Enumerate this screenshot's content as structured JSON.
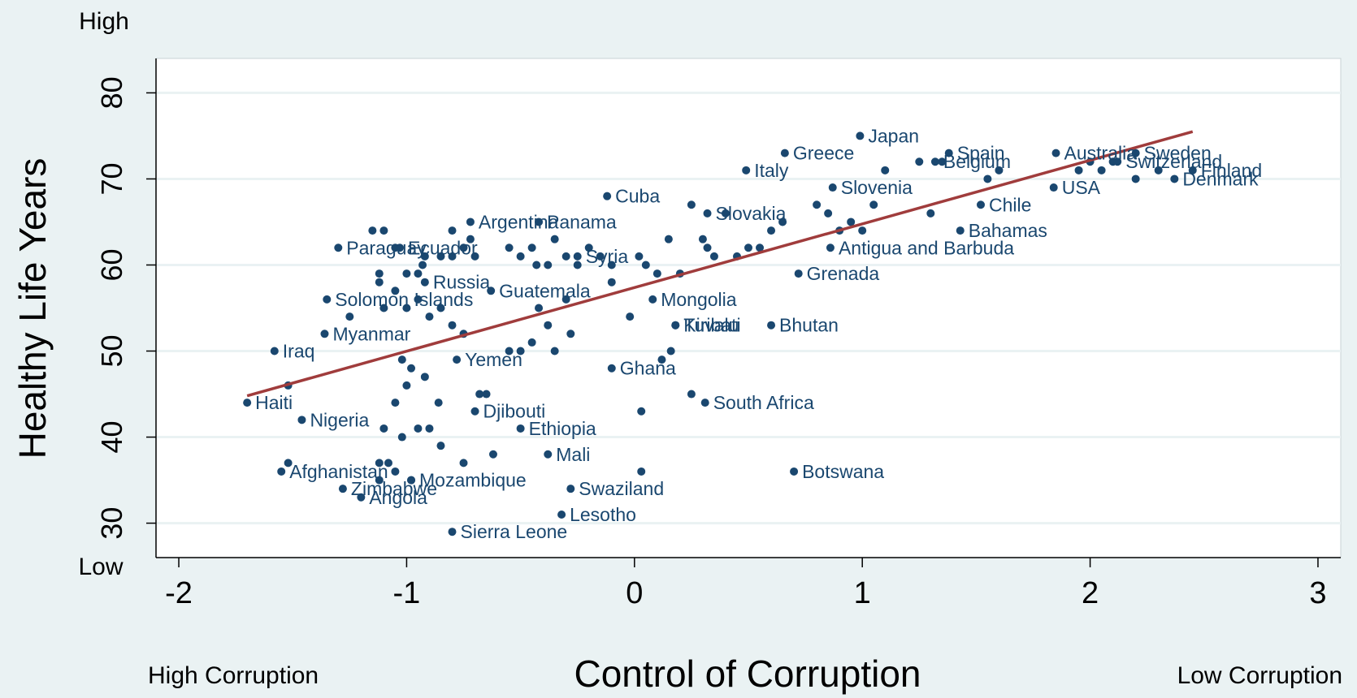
{
  "chart_data": {
    "type": "scatter",
    "title": "",
    "xlabel": "Control of Corruption",
    "ylabel": "Healthy Life Years",
    "x_low_label": "High Corruption",
    "x_high_label": "Low Corruption",
    "y_high_label": "High",
    "y_low_label": "Low",
    "xlim": [
      -2.1,
      3.1
    ],
    "ylim": [
      26,
      84
    ],
    "xticks": [
      "-2",
      "-1",
      "0",
      "1",
      "2",
      "3"
    ],
    "yticks": [
      "30",
      "40",
      "50",
      "60",
      "70",
      "80"
    ],
    "grid": true,
    "fit_line": {
      "x": [
        -1.7,
        2.45
      ],
      "y": [
        44.8,
        75.5
      ],
      "color": "#a03c3c"
    },
    "colors": {
      "points": "#1a476f",
      "labels": "#1a476f",
      "plot_bg": "#ffffff",
      "page_bg": "#eaf2f3",
      "grid": "#eaf2f3"
    },
    "labeled_points": [
      {
        "label": "Japan",
        "x": 0.99,
        "y": 75
      },
      {
        "label": "Spain",
        "x": 1.38,
        "y": 73
      },
      {
        "label": "Australia",
        "x": 1.85,
        "y": 73
      },
      {
        "label": "Sweden",
        "x": 2.2,
        "y": 73
      },
      {
        "label": "Greece",
        "x": 0.66,
        "y": 73
      },
      {
        "label": "Italy",
        "x": 0.49,
        "y": 71
      },
      {
        "label": "Belgium",
        "x": 1.32,
        "y": 72
      },
      {
        "label": "Switzerland",
        "x": 2.12,
        "y": 72
      },
      {
        "label": "Finland",
        "x": 2.45,
        "y": 71
      },
      {
        "label": "Slovenia",
        "x": 0.87,
        "y": 69
      },
      {
        "label": "USA",
        "x": 1.84,
        "y": 69
      },
      {
        "label": "Denmark",
        "x": 2.37,
        "y": 70
      },
      {
        "label": "Chile",
        "x": 1.52,
        "y": 67
      },
      {
        "label": "Argentina",
        "x": -0.72,
        "y": 65
      },
      {
        "label": "Panama",
        "x": -0.42,
        "y": 65
      },
      {
        "label": "Cuba",
        "x": -0.12,
        "y": 68
      },
      {
        "label": "Slovakia",
        "x": 0.32,
        "y": 66
      },
      {
        "label": "Bahamas",
        "x": 1.43,
        "y": 64
      },
      {
        "label": "Syria",
        "x": -0.25,
        "y": 61
      },
      {
        "label": "Paraguay",
        "x": -1.3,
        "y": 62
      },
      {
        "label": "Ecuador",
        "x": -1.03,
        "y": 62
      },
      {
        "label": "Antigua and Barbuda",
        "x": 0.86,
        "y": 62
      },
      {
        "label": "Grenada",
        "x": 0.72,
        "y": 59
      },
      {
        "label": "Russia",
        "x": -0.92,
        "y": 58
      },
      {
        "label": "Guatemala",
        "x": -0.63,
        "y": 57
      },
      {
        "label": "Solomon Islands",
        "x": -1.35,
        "y": 56
      },
      {
        "label": "Mongolia",
        "x": 0.08,
        "y": 56
      },
      {
        "label": "Myanmar",
        "x": -1.36,
        "y": 52
      },
      {
        "label": "Kiribati",
        "x": 0.18,
        "y": 53
      },
      {
        "label": "Tuvalu",
        "x": 0.18,
        "y": 53
      },
      {
        "label": "Bhutan",
        "x": 0.6,
        "y": 53
      },
      {
        "label": "Iraq",
        "x": -1.58,
        "y": 50
      },
      {
        "label": "Yemen",
        "x": -0.78,
        "y": 49
      },
      {
        "label": "Ghana",
        "x": -0.1,
        "y": 48
      },
      {
        "label": "Haiti",
        "x": -1.7,
        "y": 44
      },
      {
        "label": "South Africa",
        "x": 0.31,
        "y": 44
      },
      {
        "label": "Djibouti",
        "x": -0.7,
        "y": 43
      },
      {
        "label": "Nigeria",
        "x": -1.46,
        "y": 42
      },
      {
        "label": "Ethiopia",
        "x": -0.5,
        "y": 41
      },
      {
        "label": "Mali",
        "x": -0.38,
        "y": 38
      },
      {
        "label": "Afghanistan",
        "x": -1.55,
        "y": 36
      },
      {
        "label": "Botswana",
        "x": 0.7,
        "y": 36
      },
      {
        "label": "Zimbabwe",
        "x": -1.28,
        "y": 34
      },
      {
        "label": "Mozambique",
        "x": -0.98,
        "y": 35
      },
      {
        "label": "Angola",
        "x": -1.2,
        "y": 33
      },
      {
        "label": "Swaziland",
        "x": -0.28,
        "y": 34
      },
      {
        "label": "Lesotho",
        "x": -0.32,
        "y": 31
      },
      {
        "label": "Sierra Leone",
        "x": -0.8,
        "y": 29
      }
    ],
    "unlabeled_points": [
      [
        -1.15,
        64
      ],
      [
        -1.1,
        64
      ],
      [
        -1.12,
        59
      ],
      [
        -1.12,
        58
      ],
      [
        -1.05,
        62
      ],
      [
        -1.0,
        59
      ],
      [
        -0.95,
        59
      ],
      [
        -0.93,
        60
      ],
      [
        -0.92,
        61
      ],
      [
        -0.85,
        61
      ],
      [
        -0.8,
        61
      ],
      [
        -0.72,
        63
      ],
      [
        -0.75,
        62
      ],
      [
        -0.7,
        61
      ],
      [
        -0.8,
        64
      ],
      [
        -0.55,
        62
      ],
      [
        -0.5,
        61
      ],
      [
        -0.45,
        62
      ],
      [
        -0.43,
        60
      ],
      [
        -0.38,
        60
      ],
      [
        -0.35,
        63
      ],
      [
        -0.3,
        61
      ],
      [
        -0.25,
        60
      ],
      [
        -0.2,
        62
      ],
      [
        -0.15,
        61
      ],
      [
        -0.1,
        60
      ],
      [
        -0.1,
        58
      ],
      [
        0.02,
        61
      ],
      [
        0.05,
        60
      ],
      [
        0.1,
        59
      ],
      [
        0.15,
        63
      ],
      [
        0.2,
        59
      ],
      [
        0.25,
        67
      ],
      [
        0.3,
        63
      ],
      [
        0.32,
        62
      ],
      [
        0.35,
        61
      ],
      [
        0.4,
        66
      ],
      [
        0.45,
        61
      ],
      [
        0.5,
        62
      ],
      [
        0.55,
        62
      ],
      [
        0.6,
        64
      ],
      [
        0.65,
        65
      ],
      [
        0.8,
        67
      ],
      [
        0.85,
        66
      ],
      [
        0.9,
        64
      ],
      [
        0.95,
        65
      ],
      [
        1.0,
        64
      ],
      [
        1.05,
        67
      ],
      [
        1.1,
        71
      ],
      [
        1.25,
        72
      ],
      [
        1.3,
        66
      ],
      [
        1.35,
        72
      ],
      [
        1.55,
        70
      ],
      [
        1.6,
        71
      ],
      [
        1.95,
        71
      ],
      [
        2.0,
        72
      ],
      [
        2.05,
        71
      ],
      [
        2.1,
        72
      ],
      [
        2.2,
        70
      ],
      [
        2.3,
        71
      ],
      [
        -1.05,
        57
      ],
      [
        -1.0,
        55
      ],
      [
        -0.95,
        56
      ],
      [
        -0.9,
        54
      ],
      [
        -0.85,
        55
      ],
      [
        -0.8,
        53
      ],
      [
        -0.75,
        52
      ],
      [
        -1.25,
        54
      ],
      [
        -1.1,
        55
      ],
      [
        -0.42,
        55
      ],
      [
        -0.38,
        53
      ],
      [
        -0.3,
        56
      ],
      [
        -0.28,
        52
      ],
      [
        -0.45,
        51
      ],
      [
        -0.5,
        50
      ],
      [
        -0.55,
        50
      ],
      [
        -0.35,
        50
      ],
      [
        -1.02,
        49
      ],
      [
        -0.98,
        48
      ],
      [
        -0.92,
        47
      ],
      [
        -1.0,
        46
      ],
      [
        -0.65,
        45
      ],
      [
        -0.68,
        45
      ],
      [
        -0.86,
        44
      ],
      [
        -1.05,
        44
      ],
      [
        -1.1,
        41
      ],
      [
        -0.95,
        41
      ],
      [
        -0.9,
        41
      ],
      [
        -1.02,
        40
      ],
      [
        -0.85,
        39
      ],
      [
        -1.12,
        37
      ],
      [
        -1.08,
        37
      ],
      [
        -1.05,
        36
      ],
      [
        -0.75,
        37
      ],
      [
        -0.62,
        38
      ],
      [
        -1.52,
        37
      ],
      [
        -1.12,
        35
      ],
      [
        -0.98,
        35
      ],
      [
        0.03,
        43
      ],
      [
        0.25,
        45
      ],
      [
        0.12,
        49
      ],
      [
        0.16,
        50
      ],
      [
        -0.02,
        54
      ],
      [
        0.03,
        36
      ],
      [
        -1.52,
        46
      ]
    ]
  }
}
